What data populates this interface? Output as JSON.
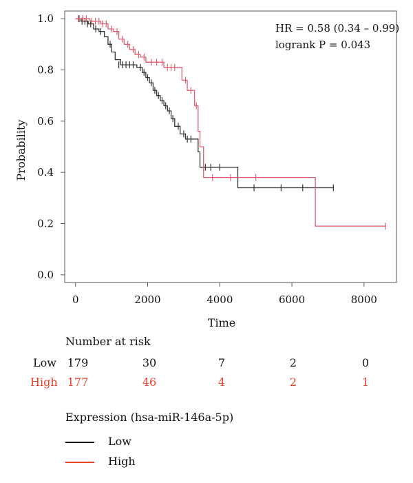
{
  "chart_data": {
    "type": "line",
    "title": "",
    "xlabel": "Time",
    "ylabel": "Probability",
    "xlim": [
      -300,
      8900
    ],
    "ylim": [
      -0.03,
      1.03
    ],
    "x_ticks": [
      0,
      2000,
      4000,
      6000,
      8000
    ],
    "y_ticks": [
      0.0,
      0.2,
      0.4,
      0.6,
      0.8,
      1.0
    ],
    "x_tick_labels": [
      "0",
      "2000",
      "4000",
      "6000",
      "8000"
    ],
    "y_tick_labels": [
      "0.0",
      "0.2",
      "0.4",
      "0.6",
      "0.8",
      "1.0"
    ],
    "annotations": [
      "HR = 0.58 (0.34 – 0.99)",
      "logrank P = 0.043"
    ],
    "series": [
      {
        "name": "Low",
        "color": "#333333",
        "steps": [
          [
            0,
            1.0
          ],
          [
            150,
            0.99
          ],
          [
            350,
            0.98
          ],
          [
            500,
            0.96
          ],
          [
            650,
            0.95
          ],
          [
            800,
            0.93
          ],
          [
            900,
            0.9
          ],
          [
            1000,
            0.87
          ],
          [
            1100,
            0.84
          ],
          [
            1250,
            0.82
          ],
          [
            1700,
            0.81
          ],
          [
            1850,
            0.79
          ],
          [
            1950,
            0.77
          ],
          [
            2050,
            0.75
          ],
          [
            2150,
            0.72
          ],
          [
            2250,
            0.7
          ],
          [
            2350,
            0.68
          ],
          [
            2450,
            0.66
          ],
          [
            2550,
            0.64
          ],
          [
            2650,
            0.61
          ],
          [
            2750,
            0.58
          ],
          [
            2900,
            0.55
          ],
          [
            3050,
            0.53
          ],
          [
            3300,
            0.53
          ],
          [
            3400,
            0.48
          ],
          [
            3450,
            0.42
          ],
          [
            4450,
            0.42
          ],
          [
            4500,
            0.34
          ],
          [
            7150,
            0.34
          ]
        ],
        "censor": [
          [
            100,
            1.0
          ],
          [
            180,
            0.99
          ],
          [
            260,
            0.99
          ],
          [
            330,
            0.98
          ],
          [
            420,
            0.98
          ],
          [
            560,
            0.96
          ],
          [
            700,
            0.95
          ],
          [
            960,
            0.9
          ],
          [
            1200,
            0.82
          ],
          [
            1300,
            0.82
          ],
          [
            1400,
            0.82
          ],
          [
            1500,
            0.82
          ],
          [
            1600,
            0.82
          ],
          [
            1800,
            0.81
          ],
          [
            1900,
            0.79
          ],
          [
            2000,
            0.77
          ],
          [
            2100,
            0.75
          ],
          [
            2200,
            0.72
          ],
          [
            2300,
            0.7
          ],
          [
            2400,
            0.68
          ],
          [
            2500,
            0.66
          ],
          [
            2600,
            0.64
          ],
          [
            2700,
            0.61
          ],
          [
            2850,
            0.58
          ],
          [
            3000,
            0.55
          ],
          [
            3100,
            0.53
          ],
          [
            3200,
            0.53
          ],
          [
            3600,
            0.42
          ],
          [
            3750,
            0.42
          ],
          [
            4000,
            0.42
          ],
          [
            4950,
            0.34
          ],
          [
            5700,
            0.34
          ],
          [
            6300,
            0.34
          ],
          [
            7150,
            0.34
          ]
        ]
      },
      {
        "name": "High",
        "color": "#e06070",
        "steps": [
          [
            0,
            1.0
          ],
          [
            400,
            0.99
          ],
          [
            700,
            0.98
          ],
          [
            900,
            0.96
          ],
          [
            1050,
            0.95
          ],
          [
            1200,
            0.92
          ],
          [
            1350,
            0.9
          ],
          [
            1500,
            0.88
          ],
          [
            1650,
            0.86
          ],
          [
            1800,
            0.85
          ],
          [
            1950,
            0.83
          ],
          [
            2300,
            0.83
          ],
          [
            2450,
            0.81
          ],
          [
            2850,
            0.81
          ],
          [
            2950,
            0.76
          ],
          [
            3100,
            0.72
          ],
          [
            3300,
            0.66
          ],
          [
            3400,
            0.56
          ],
          [
            3450,
            0.5
          ],
          [
            3550,
            0.38
          ],
          [
            6600,
            0.38
          ],
          [
            6650,
            0.19
          ],
          [
            8600,
            0.19
          ]
        ],
        "censor": [
          [
            80,
            1.0
          ],
          [
            200,
            1.0
          ],
          [
            300,
            1.0
          ],
          [
            450,
            0.99
          ],
          [
            550,
            0.99
          ],
          [
            650,
            0.99
          ],
          [
            750,
            0.98
          ],
          [
            850,
            0.98
          ],
          [
            1000,
            0.96
          ],
          [
            1150,
            0.95
          ],
          [
            1300,
            0.92
          ],
          [
            1450,
            0.9
          ],
          [
            1600,
            0.88
          ],
          [
            1750,
            0.86
          ],
          [
            1900,
            0.85
          ],
          [
            2100,
            0.83
          ],
          [
            2250,
            0.83
          ],
          [
            2400,
            0.83
          ],
          [
            2550,
            0.81
          ],
          [
            2650,
            0.81
          ],
          [
            2750,
            0.81
          ],
          [
            3050,
            0.76
          ],
          [
            3200,
            0.72
          ],
          [
            3350,
            0.66
          ],
          [
            3800,
            0.38
          ],
          [
            4300,
            0.38
          ],
          [
            5000,
            0.38
          ],
          [
            8600,
            0.19
          ]
        ]
      }
    ]
  },
  "risk_table": {
    "title": "Number at risk",
    "rows": [
      {
        "label": "Low",
        "color": "#111111",
        "values": [
          "179",
          "30",
          "7",
          "2",
          "0"
        ]
      },
      {
        "label": "High",
        "color": "#e8422a",
        "values": [
          "177",
          "46",
          "4",
          "2",
          "1"
        ]
      }
    ]
  },
  "legend": {
    "title": "Expression (hsa-miR-146a-5p)",
    "items": [
      {
        "label": "Low",
        "color": "#111111"
      },
      {
        "label": "High",
        "color": "#e8422a"
      }
    ]
  }
}
